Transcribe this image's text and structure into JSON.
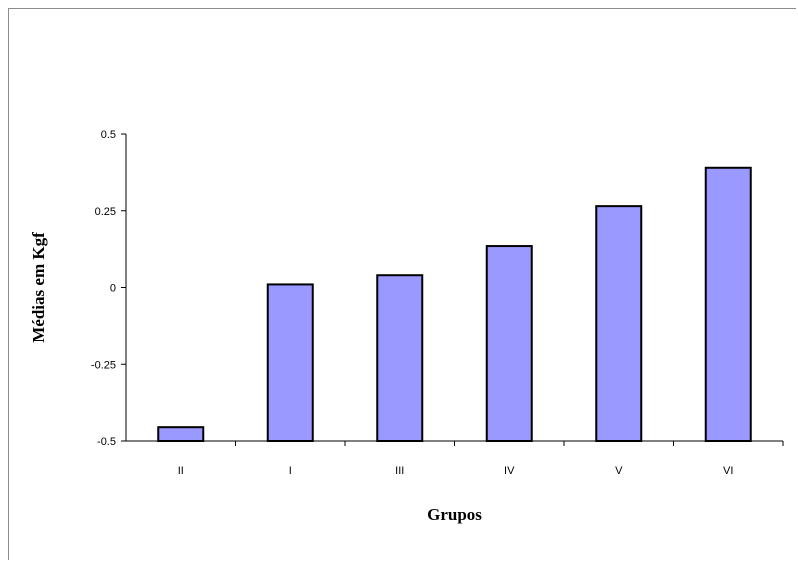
{
  "chart_data": {
    "type": "bar",
    "title": "",
    "xlabel": "Grupos",
    "ylabel": "Médias em Kgf",
    "categories": [
      "II",
      "I",
      "III",
      "IV",
      "V",
      "VI"
    ],
    "values": [
      -0.455,
      0.01,
      0.04,
      0.135,
      0.265,
      0.39
    ],
    "ylim": [
      -0.5,
      0.5
    ],
    "yticks": [
      -0.5,
      -0.25,
      0,
      0.25,
      0.5
    ],
    "ytick_labels": [
      "-0.5",
      "-0.25",
      "0",
      "0.25",
      "0.5"
    ],
    "grid": false,
    "legend": "none",
    "bar_color": "#9999ff",
    "bar_edge_color": "#000000"
  }
}
